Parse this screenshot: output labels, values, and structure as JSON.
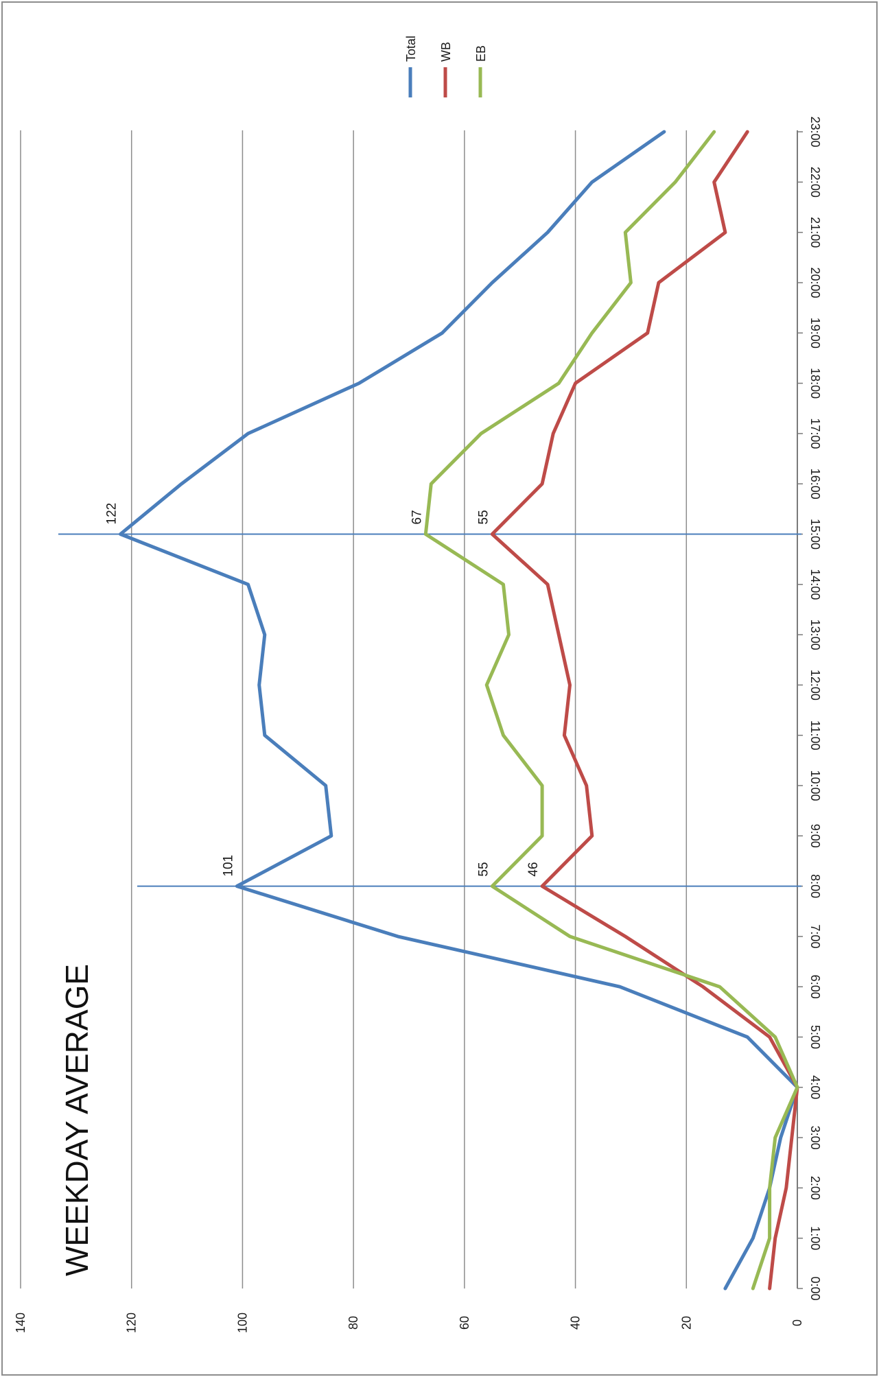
{
  "chart_data": {
    "type": "line",
    "title": "WEEKDAY AVERAGE",
    "xlabel": "",
    "ylabel": "",
    "ylim": [
      0,
      140
    ],
    "yticks": [
      "0",
      "20",
      "40",
      "60",
      "80",
      "100",
      "120",
      "140"
    ],
    "grid": true,
    "legend_position": "top-right",
    "orientation": "rotated",
    "categories": [
      "0:00",
      "1:00",
      "2:00",
      "3:00",
      "4:00",
      "5:00",
      "6:00",
      "7:00",
      "8:00",
      "9:00",
      "10:00",
      "11:00",
      "12:00",
      "13:00",
      "14:00",
      "15:00",
      "16:00",
      "17:00",
      "18:00",
      "19:00",
      "20:00",
      "21:00",
      "22:00",
      "23:00"
    ],
    "series": [
      {
        "name": "Total",
        "color": "#4a7ebb",
        "values": [
          13,
          8,
          5,
          3,
          0,
          9,
          32,
          72,
          101,
          84,
          85,
          96,
          97,
          96,
          99,
          122,
          111,
          99,
          79,
          64,
          55,
          45,
          37,
          24
        ]
      },
      {
        "name": "WB",
        "color": "#be4b48",
        "values": [
          5,
          4,
          2,
          1,
          0,
          5,
          17,
          31,
          46,
          37,
          38,
          42,
          41,
          43,
          45,
          55,
          46,
          44,
          40,
          27,
          25,
          13,
          15,
          9
        ]
      },
      {
        "name": "EB",
        "color": "#98b954",
        "values": [
          8,
          5,
          5,
          4,
          0,
          4,
          14,
          41,
          55,
          46,
          46,
          53,
          56,
          52,
          53,
          67,
          66,
          57,
          43,
          37,
          30,
          31,
          22,
          15
        ]
      }
    ],
    "annotations": [
      {
        "category": "8:00",
        "series": "Total",
        "label": "101"
      },
      {
        "category": "8:00",
        "series": "EB",
        "label": "55"
      },
      {
        "category": "8:00",
        "series": "WB",
        "label": "46"
      },
      {
        "category": "15:00",
        "series": "Total",
        "label": "122"
      },
      {
        "category": "15:00",
        "series": "EB",
        "label": "67"
      },
      {
        "category": "15:00",
        "series": "WB",
        "label": "55"
      }
    ],
    "reference_lines": [
      "8:00",
      "15:00"
    ],
    "colors": {
      "grid": "#8c8c8c",
      "reference_line": "#4a7ebb",
      "frame": "#8c8c8c"
    }
  }
}
